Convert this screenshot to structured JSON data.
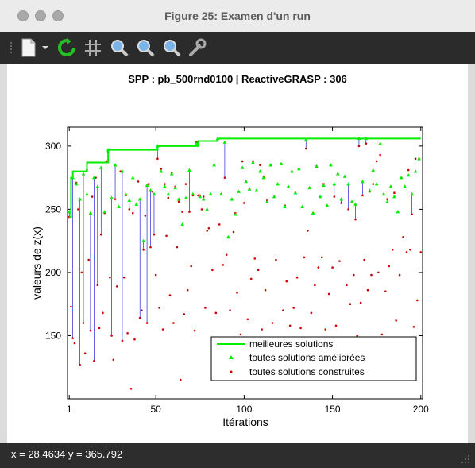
{
  "window": {
    "title": "Figure 25: Examen d'un run"
  },
  "toolbar": {
    "icons": [
      "new-document-icon",
      "dropdown-arrow-icon",
      "refresh-icon",
      "grid-icon",
      "zoom-in-icon",
      "zoom-out-icon",
      "zoom-fit-icon",
      "settings-wrench-icon"
    ]
  },
  "status": {
    "text": "x = 28.4634 y = 365.792"
  },
  "colors": {
    "best": "#00ee00",
    "improved": "#00ee00",
    "constructed": "#cc0000",
    "stem": "#0000cc"
  },
  "chart_data": {
    "type": "line",
    "title": "SPP : pb_500rnd0100 | ReactiveGRASP : 306",
    "xlabel": "Itérations",
    "ylabel": "valeurs de z(x)",
    "xlim": [
      0,
      201
    ],
    "ylim": [
      100,
      315
    ],
    "xticks": [
      1,
      50,
      100,
      150,
      200
    ],
    "yticks": [
      150,
      200,
      250,
      300
    ],
    "legend_position": "bottom-right",
    "legend": [
      "meilleures solutions",
      "toutes solutions améliorées",
      "toutes solutions construites"
    ],
    "series": [
      {
        "name": "meilleures solutions",
        "style": "step",
        "x": [
          1,
          2,
          3,
          5,
          11,
          23,
          51,
          74,
          85,
          200
        ],
        "y": [
          244,
          275,
          280,
          280,
          287,
          297,
          300,
          304,
          306,
          306
        ]
      }
    ],
    "improved": [
      [
        1,
        248
      ],
      [
        3,
        275
      ],
      [
        5,
        270
      ],
      [
        7,
        258
      ],
      [
        9,
        278
      ],
      [
        11,
        262
      ],
      [
        13,
        247
      ],
      [
        15,
        275
      ],
      [
        17,
        268
      ],
      [
        19,
        283
      ],
      [
        21,
        248
      ],
      [
        23,
        297
      ],
      [
        25,
        259
      ],
      [
        27,
        285
      ],
      [
        29,
        252
      ],
      [
        31,
        280
      ],
      [
        33,
        262
      ],
      [
        35,
        257
      ],
      [
        37,
        275
      ],
      [
        39,
        254
      ],
      [
        41,
        258
      ],
      [
        43,
        225
      ],
      [
        45,
        269
      ],
      [
        47,
        265
      ],
      [
        49,
        262
      ],
      [
        51,
        300
      ],
      [
        53,
        280
      ],
      [
        55,
        268
      ],
      [
        57,
        262
      ],
      [
        59,
        278
      ],
      [
        61,
        267
      ],
      [
        63,
        258
      ],
      [
        65,
        238
      ],
      [
        67,
        259
      ],
      [
        69,
        281
      ],
      [
        71,
        262
      ],
      [
        73,
        302
      ],
      [
        75,
        260
      ],
      [
        77,
        258
      ],
      [
        79,
        250
      ],
      [
        81,
        262
      ],
      [
        83,
        285
      ],
      [
        85,
        306
      ],
      [
        87,
        262
      ],
      [
        89,
        303
      ],
      [
        91,
        228
      ],
      [
        93,
        258
      ],
      [
        95,
        246
      ],
      [
        97,
        264
      ],
      [
        99,
        283
      ],
      [
        101,
        272
      ],
      [
        103,
        266
      ],
      [
        105,
        287
      ],
      [
        107,
        265
      ],
      [
        109,
        280
      ],
      [
        111,
        275
      ],
      [
        113,
        256
      ],
      [
        115,
        285
      ],
      [
        117,
        260
      ],
      [
        119,
        270
      ],
      [
        121,
        286
      ],
      [
        123,
        252
      ],
      [
        125,
        268
      ],
      [
        127,
        280
      ],
      [
        129,
        263
      ],
      [
        131,
        282
      ],
      [
        133,
        252
      ],
      [
        135,
        305
      ],
      [
        137,
        267
      ],
      [
        139,
        247
      ],
      [
        141,
        284
      ],
      [
        143,
        260
      ],
      [
        145,
        269
      ],
      [
        147,
        253
      ],
      [
        149,
        285
      ],
      [
        151,
        270
      ],
      [
        153,
        278
      ],
      [
        155,
        258
      ],
      [
        157,
        276
      ],
      [
        159,
        270
      ],
      [
        161,
        256
      ],
      [
        163,
        254
      ],
      [
        165,
        306
      ],
      [
        167,
        272
      ],
      [
        169,
        306
      ],
      [
        171,
        265
      ],
      [
        173,
        281
      ],
      [
        175,
        270
      ],
      [
        177,
        302
      ],
      [
        179,
        262
      ],
      [
        181,
        256
      ],
      [
        183,
        268
      ],
      [
        185,
        260
      ],
      [
        187,
        248
      ],
      [
        189,
        275
      ],
      [
        191,
        268
      ],
      [
        193,
        277
      ],
      [
        195,
        262
      ],
      [
        197,
        280
      ],
      [
        199,
        290
      ]
    ],
    "constructed": [
      [
        1,
        244
      ],
      [
        2,
        173
      ],
      [
        3,
        148
      ],
      [
        4,
        144
      ],
      [
        5,
        271
      ],
      [
        6,
        250
      ],
      [
        7,
        127
      ],
      [
        8,
        200
      ],
      [
        9,
        160
      ],
      [
        10,
        136
      ],
      [
        11,
        281
      ],
      [
        12,
        210
      ],
      [
        13,
        154
      ],
      [
        14,
        260
      ],
      [
        15,
        130
      ],
      [
        16,
        275
      ],
      [
        17,
        190
      ],
      [
        18,
        156
      ],
      [
        19,
        230
      ],
      [
        20,
        168
      ],
      [
        21,
        247
      ],
      [
        22,
        288
      ],
      [
        23,
        295
      ],
      [
        24,
        196
      ],
      [
        25,
        150
      ],
      [
        26,
        131
      ],
      [
        27,
        258
      ],
      [
        28,
        189
      ],
      [
        29,
        252
      ],
      [
        30,
        280
      ],
      [
        31,
        146
      ],
      [
        32,
        196
      ],
      [
        33,
        261
      ],
      [
        34,
        152
      ],
      [
        35,
        250
      ],
      [
        36,
        108
      ],
      [
        37,
        247
      ],
      [
        38,
        147
      ],
      [
        39,
        254
      ],
      [
        40,
        272
      ],
      [
        41,
        164
      ],
      [
        42,
        170
      ],
      [
        43,
        218
      ],
      [
        44,
        245
      ],
      [
        45,
        160
      ],
      [
        46,
        270
      ],
      [
        47,
        220
      ],
      [
        48,
        264
      ],
      [
        49,
        230
      ],
      [
        50,
        198
      ],
      [
        51,
        290
      ],
      [
        52,
        172
      ],
      [
        53,
        282
      ],
      [
        54,
        155
      ],
      [
        55,
        270
      ],
      [
        56,
        229
      ],
      [
        57,
        259
      ],
      [
        58,
        182
      ],
      [
        59,
        279
      ],
      [
        60,
        160
      ],
      [
        61,
        268
      ],
      [
        62,
        220
      ],
      [
        63,
        256
      ],
      [
        64,
        115
      ],
      [
        65,
        248
      ],
      [
        66,
        167
      ],
      [
        67,
        270
      ],
      [
        68,
        186
      ],
      [
        69,
        248
      ],
      [
        70,
        205
      ],
      [
        71,
        261
      ],
      [
        72,
        154
      ],
      [
        73,
        303
      ],
      [
        74,
        261
      ],
      [
        75,
        261
      ],
      [
        76,
        250
      ],
      [
        77,
        260
      ],
      [
        78,
        172
      ],
      [
        79,
        233
      ],
      [
        80,
        235
      ],
      [
        81,
        262
      ],
      [
        82,
        202
      ],
      [
        83,
        285
      ],
      [
        84,
        168
      ],
      [
        85,
        305
      ],
      [
        86,
        238
      ],
      [
        87,
        262
      ],
      [
        88,
        206
      ],
      [
        89,
        275
      ],
      [
        90,
        214
      ],
      [
        91,
        228
      ],
      [
        92,
        170
      ],
      [
        93,
        258
      ],
      [
        94,
        232
      ],
      [
        95,
        247
      ],
      [
        96,
        184
      ],
      [
        97,
        264
      ],
      [
        98,
        151
      ],
      [
        99,
        288
      ],
      [
        100,
        255
      ],
      [
        101,
        272
      ],
      [
        102,
        163
      ],
      [
        103,
        266
      ],
      [
        104,
        195
      ],
      [
        105,
        288
      ],
      [
        106,
        211
      ],
      [
        107,
        265
      ],
      [
        108,
        202
      ],
      [
        109,
        285
      ],
      [
        110,
        155
      ],
      [
        111,
        276
      ],
      [
        112,
        186
      ],
      [
        113,
        257
      ],
      [
        114,
        148
      ],
      [
        115,
        285
      ],
      [
        116,
        160
      ],
      [
        117,
        260
      ],
      [
        118,
        210
      ],
      [
        119,
        270
      ],
      [
        120,
        147
      ],
      [
        121,
        286
      ],
      [
        122,
        170
      ],
      [
        123,
        253
      ],
      [
        124,
        193
      ],
      [
        125,
        268
      ],
      [
        126,
        158
      ],
      [
        127,
        280
      ],
      [
        128,
        172
      ],
      [
        129,
        263
      ],
      [
        130,
        196
      ],
      [
        131,
        282
      ],
      [
        132,
        156
      ],
      [
        133,
        252
      ],
      [
        134,
        212
      ],
      [
        135,
        298
      ],
      [
        136,
        233
      ],
      [
        137,
        267
      ],
      [
        138,
        168
      ],
      [
        139,
        247
      ],
      [
        140,
        190
      ],
      [
        141,
        284
      ],
      [
        142,
        204
      ],
      [
        143,
        260
      ],
      [
        144,
        212
      ],
      [
        145,
        270
      ],
      [
        146,
        155
      ],
      [
        147,
        253
      ],
      [
        148,
        183
      ],
      [
        149,
        285
      ],
      [
        150,
        204
      ],
      [
        151,
        260
      ],
      [
        152,
        158
      ],
      [
        153,
        278
      ],
      [
        154,
        209
      ],
      [
        155,
        255
      ],
      [
        156,
        148
      ],
      [
        157,
        276
      ],
      [
        158,
        190
      ],
      [
        159,
        250
      ],
      [
        160,
        175
      ],
      [
        161,
        256
      ],
      [
        162,
        198
      ],
      [
        163,
        242
      ],
      [
        164,
        150
      ],
      [
        165,
        300
      ],
      [
        166,
        176
      ],
      [
        167,
        261
      ],
      [
        168,
        210
      ],
      [
        169,
        302
      ],
      [
        170,
        186
      ],
      [
        171,
        264
      ],
      [
        172,
        198
      ],
      [
        173,
        270
      ],
      [
        174,
        148
      ],
      [
        175,
        288
      ],
      [
        176,
        200
      ],
      [
        177,
        293
      ],
      [
        178,
        151
      ],
      [
        179,
        262
      ],
      [
        180,
        185
      ],
      [
        181,
        258
      ],
      [
        182,
        205
      ],
      [
        183,
        268
      ],
      [
        184,
        218
      ],
      [
        185,
        263
      ],
      [
        186,
        162
      ],
      [
        187,
        248
      ],
      [
        188,
        198
      ],
      [
        189,
        275
      ],
      [
        190,
        228
      ],
      [
        191,
        268
      ],
      [
        192,
        216
      ],
      [
        193,
        281
      ],
      [
        194,
        218
      ],
      [
        195,
        246
      ],
      [
        196,
        157
      ],
      [
        197,
        290
      ],
      [
        198,
        178
      ],
      [
        199,
        290
      ],
      [
        200,
        216
      ]
    ]
  }
}
